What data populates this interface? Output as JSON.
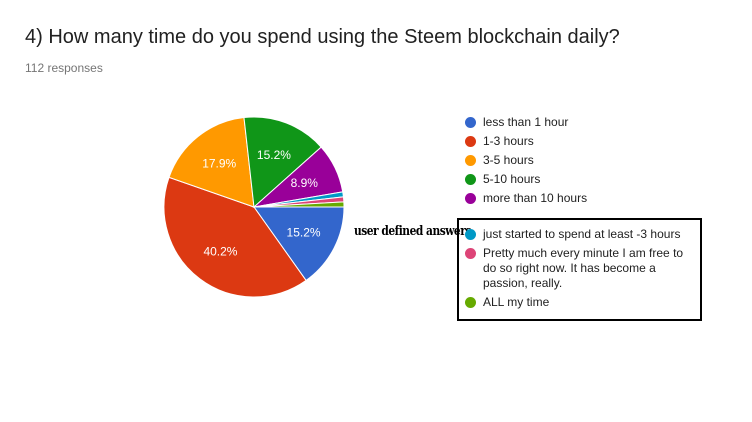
{
  "title": "4) How many time do you spend using the Steem blockchain daily?",
  "responses": "112 responses",
  "annotation_label": "user defined answers",
  "chart_data": {
    "type": "pie",
    "slices": [
      {
        "label": "less than 1 hour",
        "value": 15.2,
        "color": "#3366cc",
        "display": "15.2%"
      },
      {
        "label": "1-3 hours",
        "value": 40.2,
        "color": "#dc3912",
        "display": "40.2%"
      },
      {
        "label": "3-5 hours",
        "value": 17.9,
        "color": "#ff9900",
        "display": "17.9%"
      },
      {
        "label": "5-10 hours",
        "value": 15.2,
        "color": "#109618",
        "display": "15.2%"
      },
      {
        "label": "more than 10 hours",
        "value": 8.9,
        "color": "#990099",
        "display": "8.9%"
      },
      {
        "label": "just started to spend at least -3 hours",
        "value": 0.9,
        "color": "#0099c6",
        "display": ""
      },
      {
        "label": "Pretty much every minute I am free to do so right now. It has become a passion, really.",
        "value": 0.9,
        "color": "#dd4477",
        "display": ""
      },
      {
        "label": "ALL my time",
        "value": 0.9,
        "color": "#66aa00",
        "display": ""
      }
    ],
    "legend_position": "right"
  }
}
